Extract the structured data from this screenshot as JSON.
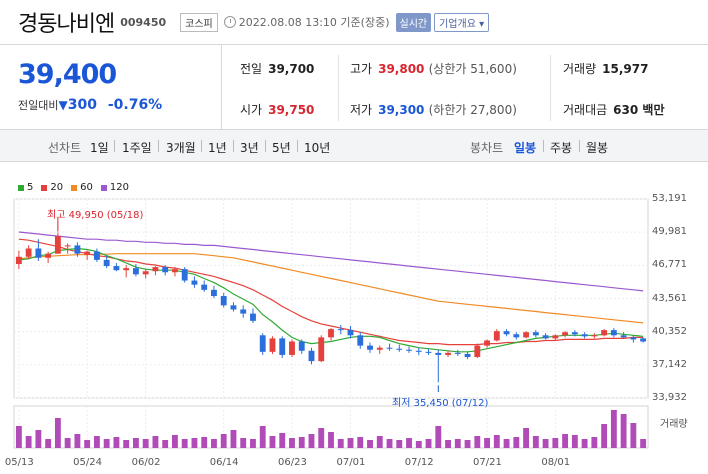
{
  "header": {
    "name": "경동나비엔",
    "code": "009450",
    "market": "코스피",
    "datetime": "2022.08.08 13:10 기준(장중)",
    "realtime": "실시간",
    "company": "기업개요"
  },
  "quote": {
    "price": "39,400",
    "change_label": "전일대비",
    "change": "300",
    "change_pct": "-0.76%",
    "prev_label": "전일",
    "prev": "39,700",
    "high_label": "고가",
    "high": "39,800",
    "upper_limit": "(상한가 51,600)",
    "volume_label": "거래량",
    "volume": "15,977",
    "open_label": "시가",
    "open": "39,750",
    "low_label": "저가",
    "low": "39,300",
    "lower_limit": "(하한가 27,800)",
    "amount_label": "거래대금",
    "amount": "630 백만"
  },
  "tabs": {
    "line_label": "선차트",
    "line": [
      "1일",
      "1주일",
      "3개월",
      "1년",
      "3년",
      "5년",
      "10년"
    ],
    "candle_label": "봉차트",
    "candle": [
      "일봉",
      "주봉",
      "월봉"
    ],
    "active_candle": "일봉"
  },
  "legend": [
    {
      "label": "5",
      "color": "#2eaa34"
    },
    {
      "label": "20",
      "color": "#e5413c"
    },
    {
      "label": "60",
      "color": "#f08a24"
    },
    {
      "label": "120",
      "color": "#9b59d0"
    }
  ],
  "chart_data": {
    "type": "candlestick",
    "y_ticks": [
      53191,
      49981,
      46771,
      43561,
      40352,
      37142,
      33932
    ],
    "ylim": [
      33932,
      53191
    ],
    "x_ticks": [
      "05/13",
      "05/24",
      "06/02",
      "06/14",
      "06/23",
      "07/01",
      "07/12",
      "07/21",
      "08/01"
    ],
    "x_tick_index": [
      0,
      7,
      13,
      21,
      28,
      34,
      41,
      48,
      55
    ],
    "high_annotation": "최고 49,950 (05/18)",
    "low_annotation": "최저 35,450 (07/12)",
    "volume_label": "거래량",
    "candles": [
      [
        46900,
        48200,
        46400,
        47600
      ],
      [
        47600,
        48700,
        47400,
        48400
      ],
      [
        48400,
        49300,
        47200,
        47500
      ],
      [
        47500,
        48100,
        47000,
        47900
      ],
      [
        47900,
        49950,
        47900,
        49600
      ],
      [
        48600,
        48900,
        47900,
        48700
      ],
      [
        48700,
        49000,
        47600,
        47900
      ],
      [
        47800,
        48200,
        47300,
        48100
      ],
      [
        48100,
        48400,
        47100,
        47300
      ],
      [
        47300,
        47700,
        46500,
        46700
      ],
      [
        46700,
        47000,
        46200,
        46300
      ],
      [
        46300,
        46800,
        45600,
        46500
      ],
      [
        46500,
        46900,
        45700,
        45900
      ],
      [
        45900,
        46400,
        45500,
        46200
      ],
      [
        46200,
        46700,
        45800,
        46600
      ],
      [
        46600,
        46800,
        45800,
        46100
      ],
      [
        46100,
        46600,
        45700,
        46400
      ],
      [
        46400,
        46600,
        45100,
        45300
      ],
      [
        45300,
        45700,
        44600,
        44900
      ],
      [
        44900,
        45300,
        44200,
        44400
      ],
      [
        44400,
        44800,
        43600,
        43800
      ],
      [
        43800,
        44100,
        42700,
        42900
      ],
      [
        42900,
        43200,
        42300,
        42500
      ],
      [
        42500,
        42900,
        41700,
        42100
      ],
      [
        42100,
        42600,
        41200,
        41400
      ],
      [
        40000,
        40200,
        38100,
        38400
      ],
      [
        38400,
        39900,
        38200,
        39700
      ],
      [
        39700,
        39900,
        37800,
        38100
      ],
      [
        38100,
        39600,
        37900,
        39400
      ],
      [
        39400,
        39600,
        38200,
        38500
      ],
      [
        38500,
        38800,
        37200,
        37500
      ],
      [
        37500,
        40000,
        37400,
        39800
      ],
      [
        39800,
        40700,
        39500,
        40600
      ],
      [
        40600,
        41000,
        40100,
        40500
      ],
      [
        40500,
        40900,
        39700,
        40000
      ],
      [
        40000,
        40300,
        38700,
        39000
      ],
      [
        39000,
        39300,
        38300,
        38600
      ],
      [
        38600,
        39000,
        38200,
        38800
      ],
      [
        38800,
        39200,
        38500,
        38700
      ],
      [
        38700,
        39100,
        38400,
        38600
      ],
      [
        38600,
        38900,
        38300,
        38500
      ],
      [
        38500,
        38800,
        38100,
        38400
      ],
      [
        38400,
        38700,
        38100,
        38300
      ],
      [
        38300,
        38600,
        35450,
        38100
      ],
      [
        38100,
        38500,
        37900,
        38300
      ],
      [
        38300,
        38600,
        38000,
        38200
      ],
      [
        38200,
        38400,
        37700,
        37900
      ],
      [
        37900,
        39200,
        37800,
        39000
      ],
      [
        39000,
        39600,
        38800,
        39500
      ],
      [
        39500,
        40600,
        39400,
        40400
      ],
      [
        40400,
        40600,
        39900,
        40100
      ],
      [
        40100,
        40300,
        39600,
        39800
      ],
      [
        39800,
        40400,
        39700,
        40300
      ],
      [
        40300,
        40500,
        39800,
        40000
      ],
      [
        40000,
        40200,
        39600,
        39700
      ],
      [
        39700,
        40100,
        39500,
        40000
      ],
      [
        40000,
        40400,
        39800,
        40300
      ],
      [
        40300,
        40500,
        39900,
        40100
      ],
      [
        40100,
        40300,
        39700,
        39900
      ],
      [
        39900,
        40200,
        39700,
        40000
      ],
      [
        40000,
        40600,
        39900,
        40500
      ],
      [
        40500,
        40700,
        39800,
        40000
      ],
      [
        40000,
        40300,
        39700,
        39800
      ],
      [
        39800,
        40000,
        39300,
        39600
      ],
      [
        39700,
        39800,
        39300,
        39400
      ]
    ],
    "volumes": [
      22,
      12,
      18,
      9,
      30,
      10,
      14,
      8,
      12,
      9,
      11,
      8,
      10,
      9,
      12,
      8,
      13,
      9,
      10,
      11,
      9,
      14,
      18,
      10,
      9,
      22,
      12,
      15,
      10,
      11,
      14,
      20,
      16,
      9,
      10,
      11,
      8,
      12,
      9,
      8,
      10,
      7,
      9,
      22,
      8,
      9,
      8,
      12,
      10,
      13,
      9,
      11,
      20,
      12,
      9,
      10,
      14,
      13,
      9,
      11,
      24,
      38,
      34,
      25,
      9
    ],
    "ma5": [
      47300,
      47400,
      47700,
      47800,
      48200,
      48300,
      48400,
      48300,
      48100,
      47700,
      47400,
      47000,
      46600,
      46400,
      46300,
      46300,
      46300,
      46100,
      45900,
      45500,
      45100,
      44600,
      44000,
      43500,
      43000,
      42000,
      41300,
      40500,
      39800,
      39400,
      39200,
      39300,
      39400,
      39600,
      39800,
      39900,
      39900,
      39800,
      39500,
      39200,
      39000,
      38800,
      38700,
      38600,
      38500,
      38400,
      38400,
      38500,
      38700,
      38900,
      39100,
      39300,
      39500,
      39700,
      39800,
      39900,
      40000,
      40000,
      40000,
      40000,
      40100,
      40200,
      40100,
      40000,
      39900
    ],
    "ma20": [
      49300,
      49200,
      49000,
      48800,
      48600,
      48300,
      48100,
      47900,
      47700,
      47600,
      47400,
      47200,
      47100,
      46900,
      46800,
      46600,
      46500,
      46300,
      46100,
      45900,
      45700,
      45400,
      45100,
      44800,
      44400,
      43900,
      43400,
      42800,
      42300,
      41800,
      41400,
      41100,
      40900,
      40700,
      40500,
      40300,
      40100,
      39900,
      39700,
      39500,
      39400,
      39300,
      39200,
      39200,
      39100,
      39100,
      39100,
      39100,
      39200,
      39200,
      39300,
      39300,
      39400,
      39400,
      39500,
      39500,
      39600,
      39600,
      39600,
      39600,
      39700,
      39700,
      39700,
      39800,
      39800
    ],
    "ma60": [
      47400,
      47500,
      47600,
      47650,
      47700,
      47750,
      47800,
      47800,
      47850,
      47850,
      47900,
      47900,
      47900,
      47900,
      47900,
      47900,
      47900,
      47900,
      47900,
      47800,
      47700,
      47600,
      47500,
      47300,
      47100,
      46900,
      46700,
      46500,
      46300,
      46100,
      45900,
      45700,
      45500,
      45300,
      45100,
      44900,
      44700,
      44500,
      44300,
      44100,
      43900,
      43700,
      43500,
      43300,
      43200,
      43100,
      43000,
      42900,
      42800,
      42700,
      42600,
      42500,
      42400,
      42300,
      42200,
      42100,
      42000,
      41900,
      41800,
      41700,
      41600,
      41500,
      41400,
      41300,
      41200
    ],
    "ma120": [
      50000,
      49900,
      49800,
      49700,
      49600,
      49500,
      49400,
      49300,
      49300,
      49200,
      49200,
      49100,
      49100,
      49000,
      49000,
      48900,
      48900,
      48800,
      48800,
      48700,
      48700,
      48600,
      48500,
      48400,
      48300,
      48200,
      48100,
      48000,
      47900,
      47800,
      47700,
      47600,
      47500,
      47400,
      47300,
      47200,
      47100,
      47000,
      46900,
      46800,
      46700,
      46600,
      46500,
      46400,
      46300,
      46200,
      46100,
      46000,
      45900,
      45800,
      45700,
      45600,
      45500,
      45400,
      45300,
      45200,
      45100,
      45000,
      44900,
      44800,
      44700,
      44600,
      44500,
      44400,
      44300
    ]
  }
}
